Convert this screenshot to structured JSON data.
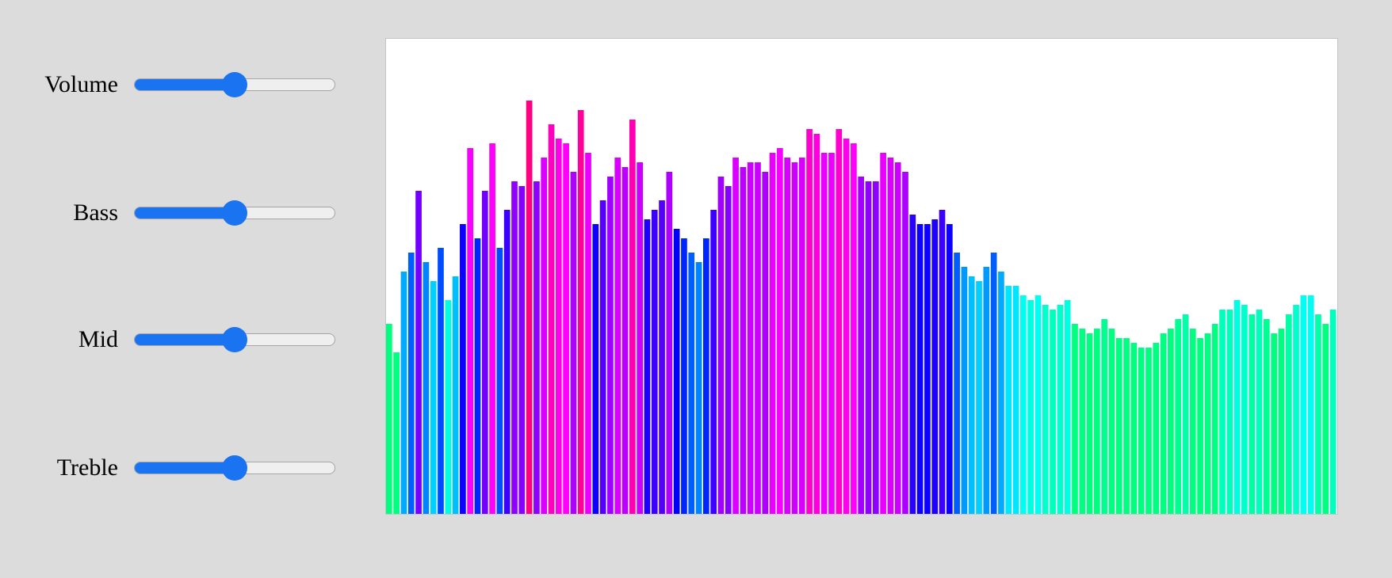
{
  "controls": [
    {
      "label": "Volume",
      "value": 0.5,
      "min": 0,
      "max": 1
    },
    {
      "label": "Bass",
      "value": 0.5,
      "min": 0,
      "max": 1
    },
    {
      "label": "Mid",
      "value": 0.5,
      "min": 0,
      "max": 1
    },
    {
      "label": "Treble",
      "value": 0.5,
      "min": 0,
      "max": 1
    }
  ],
  "colors": {
    "background": "#dcdcdc",
    "accent": "#1a73f0",
    "track": "#efefef",
    "panel": "#ffffff"
  },
  "chart_data": {
    "type": "bar",
    "title": "",
    "xlabel": "",
    "ylabel": "",
    "ylim": [
      0,
      1
    ],
    "grid": false,
    "values": [
      0.4,
      0.34,
      0.51,
      0.55,
      0.68,
      0.53,
      0.49,
      0.56,
      0.45,
      0.5,
      0.61,
      0.77,
      0.58,
      0.68,
      0.78,
      0.56,
      0.64,
      0.7,
      0.69,
      0.87,
      0.7,
      0.75,
      0.82,
      0.79,
      0.78,
      0.72,
      0.85,
      0.76,
      0.61,
      0.66,
      0.71,
      0.75,
      0.73,
      0.83,
      0.74,
      0.62,
      0.64,
      0.66,
      0.72,
      0.6,
      0.58,
      0.55,
      0.53,
      0.58,
      0.64,
      0.71,
      0.69,
      0.75,
      0.73,
      0.74,
      0.74,
      0.72,
      0.76,
      0.77,
      0.75,
      0.74,
      0.75,
      0.81,
      0.8,
      0.76,
      0.76,
      0.81,
      0.79,
      0.78,
      0.71,
      0.7,
      0.7,
      0.76,
      0.75,
      0.74,
      0.72,
      0.63,
      0.61,
      0.61,
      0.62,
      0.64,
      0.61,
      0.55,
      0.52,
      0.5,
      0.49,
      0.52,
      0.55,
      0.51,
      0.48,
      0.48,
      0.46,
      0.45,
      0.46,
      0.44,
      0.43,
      0.44,
      0.45,
      0.4,
      0.39,
      0.38,
      0.39,
      0.41,
      0.39,
      0.37,
      0.37,
      0.36,
      0.35,
      0.35,
      0.36,
      0.38,
      0.39,
      0.41,
      0.42,
      0.39,
      0.37,
      0.38,
      0.4,
      0.43,
      0.43,
      0.45,
      0.44,
      0.42,
      0.43,
      0.41,
      0.38,
      0.39,
      0.42,
      0.44,
      0.46,
      0.46,
      0.42,
      0.4,
      0.43
    ]
  }
}
